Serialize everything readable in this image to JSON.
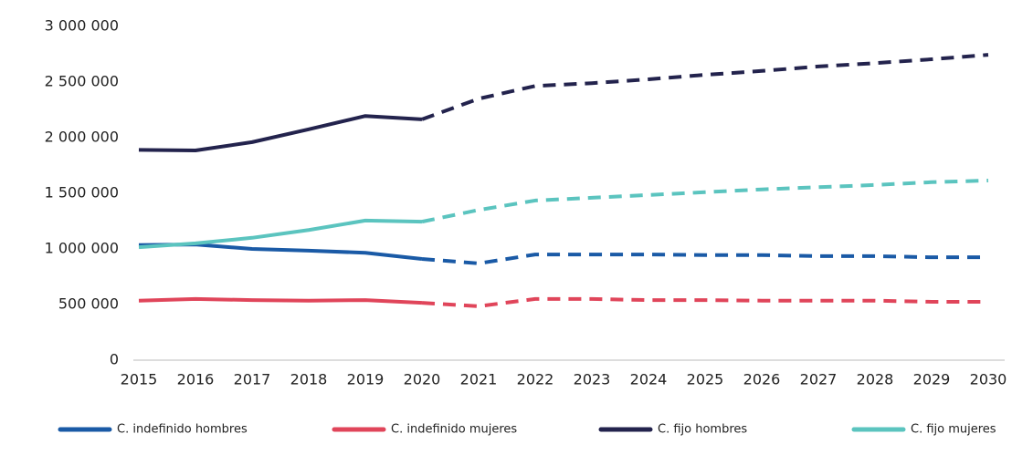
{
  "chart_data": {
    "type": "line",
    "x": [
      2015,
      2016,
      2017,
      2018,
      2019,
      2020,
      2021,
      2022,
      2023,
      2024,
      2025,
      2026,
      2027,
      2028,
      2029,
      2030
    ],
    "xlim": [
      2015,
      2030
    ],
    "xticks": [
      2015,
      2016,
      2017,
      2018,
      2019,
      2020,
      2021,
      2022,
      2023,
      2024,
      2025,
      2026,
      2027,
      2028,
      2029,
      2030
    ],
    "ylim": [
      0,
      3000000
    ],
    "yticks": [
      0,
      {
        "value": 500000,
        "label": "500 000"
      },
      {
        "value": 1000000,
        "label": "1 000 000"
      },
      {
        "value": 1500000,
        "label": "1 500 000"
      },
      {
        "value": 2000000,
        "label": "2 000 000"
      },
      {
        "value": 2500000,
        "label": "2 500 000"
      },
      {
        "value": 3000000,
        "label": "3 000 000"
      }
    ],
    "projection_from": 2020,
    "legend": "bottom",
    "series": [
      {
        "name": "C. indefinido hombres",
        "color": "#1a5aa6",
        "values": [
          1035000,
          1040000,
          1000000,
          985000,
          965000,
          910000,
          870000,
          950000,
          950000,
          950000,
          945000,
          945000,
          935000,
          935000,
          925000,
          925000
        ]
      },
      {
        "name": "C. indefinido mujeres",
        "color": "#e0455a",
        "values": [
          535000,
          550000,
          540000,
          535000,
          540000,
          515000,
          485000,
          550000,
          550000,
          540000,
          540000,
          535000,
          535000,
          535000,
          525000,
          525000
        ]
      },
      {
        "name": "C. fijo hombres",
        "color": "#23234d",
        "values": [
          1890000,
          1885000,
          1960000,
          2075000,
          2195000,
          2165000,
          2350000,
          2465000,
          2490000,
          2525000,
          2565000,
          2600000,
          2640000,
          2670000,
          2705000,
          2745000
        ]
      },
      {
        "name": "C. fijo mujeres",
        "color": "#5bc4bf",
        "values": [
          1015000,
          1050000,
          1100000,
          1170000,
          1255000,
          1245000,
          1350000,
          1435000,
          1460000,
          1485000,
          1510000,
          1535000,
          1555000,
          1575000,
          1600000,
          1615000
        ]
      }
    ]
  }
}
